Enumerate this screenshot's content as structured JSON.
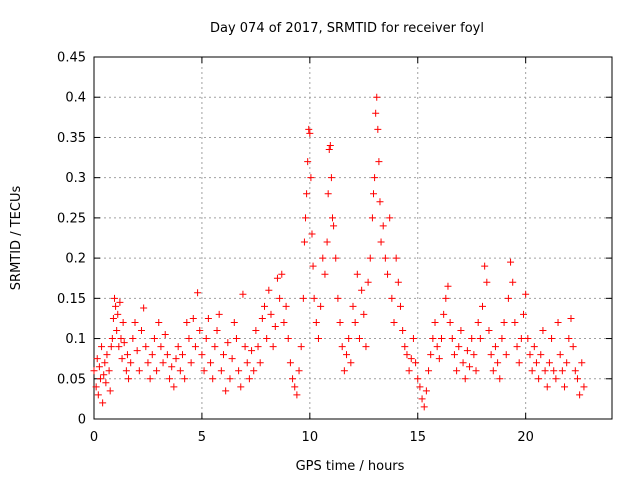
{
  "chart_data": {
    "type": "scatter",
    "title": "Day 074 of 2017, SRMTID for receiver foyl",
    "xlabel": "GPS time / hours",
    "ylabel": "SRMTID / TECUs",
    "xlim": [
      0,
      24
    ],
    "ylim": [
      0,
      0.45
    ],
    "xticks": [
      0,
      5,
      10,
      15,
      20
    ],
    "xtick_labels": [
      "0",
      "5",
      "10",
      "15",
      "20"
    ],
    "yticks": [
      0,
      0.05,
      0.1,
      0.15,
      0.2,
      0.25,
      0.3,
      0.35,
      0.4,
      0.45
    ],
    "ytick_labels": [
      "0",
      "0.05",
      "0.1",
      "0.15",
      "0.2",
      "0.25",
      "0.3",
      "0.35",
      "0.4",
      "0.45"
    ],
    "grid": true,
    "marker": "+",
    "color": "#ff0000",
    "series": [
      {
        "name": "SRMTID",
        "points": [
          [
            0.0,
            0.06
          ],
          [
            0.1,
            0.04
          ],
          [
            0.15,
            0.075
          ],
          [
            0.2,
            0.03
          ],
          [
            0.25,
            0.065
          ],
          [
            0.3,
            0.05
          ],
          [
            0.35,
            0.09
          ],
          [
            0.4,
            0.02
          ],
          [
            0.45,
            0.055
          ],
          [
            0.5,
            0.07
          ],
          [
            0.55,
            0.045
          ],
          [
            0.6,
            0.08
          ],
          [
            0.7,
            0.06
          ],
          [
            0.75,
            0.035
          ],
          [
            0.8,
            0.09
          ],
          [
            0.85,
            0.1
          ],
          [
            0.9,
            0.125
          ],
          [
            0.95,
            0.15
          ],
          [
            1.0,
            0.14
          ],
          [
            1.05,
            0.11
          ],
          [
            1.1,
            0.13
          ],
          [
            1.15,
            0.09
          ],
          [
            1.2,
            0.145
          ],
          [
            1.25,
            0.1
          ],
          [
            1.3,
            0.075
          ],
          [
            1.35,
            0.12
          ],
          [
            1.4,
            0.095
          ],
          [
            1.5,
            0.06
          ],
          [
            1.55,
            0.08
          ],
          [
            1.6,
            0.05
          ],
          [
            1.7,
            0.07
          ],
          [
            1.8,
            0.1
          ],
          [
            1.9,
            0.12
          ],
          [
            2.0,
            0.085
          ],
          [
            2.1,
            0.06
          ],
          [
            2.2,
            0.11
          ],
          [
            2.3,
            0.138
          ],
          [
            2.4,
            0.09
          ],
          [
            2.5,
            0.07
          ],
          [
            2.6,
            0.05
          ],
          [
            2.7,
            0.08
          ],
          [
            2.8,
            0.1
          ],
          [
            2.9,
            0.06
          ],
          [
            3.0,
            0.12
          ],
          [
            3.1,
            0.09
          ],
          [
            3.2,
            0.07
          ],
          [
            3.3,
            0.105
          ],
          [
            3.4,
            0.08
          ],
          [
            3.5,
            0.05
          ],
          [
            3.6,
            0.065
          ],
          [
            3.7,
            0.04
          ],
          [
            3.8,
            0.075
          ],
          [
            3.9,
            0.09
          ],
          [
            4.0,
            0.06
          ],
          [
            4.1,
            0.08
          ],
          [
            4.2,
            0.05
          ],
          [
            4.3,
            0.12
          ],
          [
            4.4,
            0.1
          ],
          [
            4.5,
            0.07
          ],
          [
            4.6,
            0.125
          ],
          [
            4.7,
            0.09
          ],
          [
            4.8,
            0.157
          ],
          [
            4.9,
            0.11
          ],
          [
            5.0,
            0.08
          ],
          [
            5.1,
            0.06
          ],
          [
            5.2,
            0.1
          ],
          [
            5.3,
            0.125
          ],
          [
            5.4,
            0.07
          ],
          [
            5.5,
            0.05
          ],
          [
            5.6,
            0.09
          ],
          [
            5.7,
            0.11
          ],
          [
            5.8,
            0.13
          ],
          [
            5.9,
            0.06
          ],
          [
            6.0,
            0.08
          ],
          [
            6.1,
            0.035
          ],
          [
            6.2,
            0.095
          ],
          [
            6.3,
            0.05
          ],
          [
            6.4,
            0.075
          ],
          [
            6.5,
            0.12
          ],
          [
            6.6,
            0.1
          ],
          [
            6.7,
            0.06
          ],
          [
            6.8,
            0.04
          ],
          [
            6.9,
            0.155
          ],
          [
            7.0,
            0.09
          ],
          [
            7.1,
            0.07
          ],
          [
            7.2,
            0.05
          ],
          [
            7.3,
            0.085
          ],
          [
            7.4,
            0.06
          ],
          [
            7.5,
            0.11
          ],
          [
            7.6,
            0.09
          ],
          [
            7.7,
            0.07
          ],
          [
            7.8,
            0.125
          ],
          [
            7.9,
            0.14
          ],
          [
            8.0,
            0.1
          ],
          [
            8.1,
            0.16
          ],
          [
            8.2,
            0.13
          ],
          [
            8.3,
            0.09
          ],
          [
            8.4,
            0.115
          ],
          [
            8.5,
            0.175
          ],
          [
            8.6,
            0.15
          ],
          [
            8.7,
            0.18
          ],
          [
            8.8,
            0.12
          ],
          [
            8.9,
            0.14
          ],
          [
            9.0,
            0.1
          ],
          [
            9.1,
            0.07
          ],
          [
            9.2,
            0.05
          ],
          [
            9.3,
            0.04
          ],
          [
            9.4,
            0.03
          ],
          [
            9.5,
            0.06
          ],
          [
            9.6,
            0.09
          ],
          [
            9.7,
            0.15
          ],
          [
            9.75,
            0.22
          ],
          [
            9.8,
            0.25
          ],
          [
            9.85,
            0.28
          ],
          [
            9.9,
            0.32
          ],
          [
            9.95,
            0.36
          ],
          [
            10.0,
            0.355
          ],
          [
            10.05,
            0.3
          ],
          [
            10.1,
            0.23
          ],
          [
            10.15,
            0.19
          ],
          [
            10.2,
            0.15
          ],
          [
            10.3,
            0.12
          ],
          [
            10.4,
            0.1
          ],
          [
            10.5,
            0.14
          ],
          [
            10.6,
            0.2
          ],
          [
            10.7,
            0.18
          ],
          [
            10.8,
            0.22
          ],
          [
            10.85,
            0.28
          ],
          [
            10.9,
            0.335
          ],
          [
            10.95,
            0.34
          ],
          [
            11.0,
            0.3
          ],
          [
            11.05,
            0.25
          ],
          [
            11.1,
            0.24
          ],
          [
            11.2,
            0.2
          ],
          [
            11.3,
            0.15
          ],
          [
            11.4,
            0.12
          ],
          [
            11.5,
            0.09
          ],
          [
            11.6,
            0.06
          ],
          [
            11.7,
            0.08
          ],
          [
            11.8,
            0.1
          ],
          [
            11.9,
            0.07
          ],
          [
            12.0,
            0.14
          ],
          [
            12.1,
            0.12
          ],
          [
            12.2,
            0.18
          ],
          [
            12.3,
            0.1
          ],
          [
            12.4,
            0.16
          ],
          [
            12.5,
            0.13
          ],
          [
            12.6,
            0.09
          ],
          [
            12.7,
            0.17
          ],
          [
            12.8,
            0.2
          ],
          [
            12.9,
            0.25
          ],
          [
            12.95,
            0.28
          ],
          [
            13.0,
            0.3
          ],
          [
            13.05,
            0.38
          ],
          [
            13.1,
            0.4
          ],
          [
            13.15,
            0.36
          ],
          [
            13.2,
            0.32
          ],
          [
            13.25,
            0.27
          ],
          [
            13.3,
            0.22
          ],
          [
            13.4,
            0.24
          ],
          [
            13.5,
            0.2
          ],
          [
            13.6,
            0.18
          ],
          [
            13.7,
            0.25
          ],
          [
            13.8,
            0.15
          ],
          [
            13.9,
            0.12
          ],
          [
            14.0,
            0.2
          ],
          [
            14.1,
            0.17
          ],
          [
            14.2,
            0.14
          ],
          [
            14.3,
            0.11
          ],
          [
            14.4,
            0.09
          ],
          [
            14.5,
            0.08
          ],
          [
            14.6,
            0.06
          ],
          [
            14.7,
            0.075
          ],
          [
            14.8,
            0.1
          ],
          [
            14.9,
            0.07
          ],
          [
            15.0,
            0.05
          ],
          [
            15.1,
            0.04
          ],
          [
            15.2,
            0.025
          ],
          [
            15.3,
            0.015
          ],
          [
            15.4,
            0.035
          ],
          [
            15.5,
            0.06
          ],
          [
            15.6,
            0.08
          ],
          [
            15.7,
            0.1
          ],
          [
            15.8,
            0.12
          ],
          [
            15.9,
            0.09
          ],
          [
            16.0,
            0.075
          ],
          [
            16.1,
            0.1
          ],
          [
            16.2,
            0.13
          ],
          [
            16.3,
            0.15
          ],
          [
            16.4,
            0.165
          ],
          [
            16.5,
            0.12
          ],
          [
            16.6,
            0.1
          ],
          [
            16.7,
            0.08
          ],
          [
            16.8,
            0.06
          ],
          [
            16.9,
            0.09
          ],
          [
            17.0,
            0.11
          ],
          [
            17.1,
            0.07
          ],
          [
            17.2,
            0.05
          ],
          [
            17.3,
            0.085
          ],
          [
            17.4,
            0.065
          ],
          [
            17.5,
            0.1
          ],
          [
            17.6,
            0.08
          ],
          [
            17.7,
            0.06
          ],
          [
            17.8,
            0.12
          ],
          [
            17.9,
            0.1
          ],
          [
            18.0,
            0.14
          ],
          [
            18.1,
            0.19
          ],
          [
            18.2,
            0.17
          ],
          [
            18.3,
            0.11
          ],
          [
            18.4,
            0.08
          ],
          [
            18.5,
            0.06
          ],
          [
            18.6,
            0.09
          ],
          [
            18.7,
            0.07
          ],
          [
            18.8,
            0.05
          ],
          [
            18.9,
            0.1
          ],
          [
            19.0,
            0.12
          ],
          [
            19.1,
            0.08
          ],
          [
            19.2,
            0.15
          ],
          [
            19.3,
            0.195
          ],
          [
            19.4,
            0.17
          ],
          [
            19.5,
            0.12
          ],
          [
            19.6,
            0.09
          ],
          [
            19.7,
            0.07
          ],
          [
            19.8,
            0.1
          ],
          [
            19.9,
            0.13
          ],
          [
            20.0,
            0.155
          ],
          [
            20.1,
            0.1
          ],
          [
            20.2,
            0.08
          ],
          [
            20.3,
            0.06
          ],
          [
            20.4,
            0.09
          ],
          [
            20.5,
            0.07
          ],
          [
            20.6,
            0.05
          ],
          [
            20.7,
            0.08
          ],
          [
            20.8,
            0.11
          ],
          [
            20.9,
            0.06
          ],
          [
            21.0,
            0.04
          ],
          [
            21.1,
            0.07
          ],
          [
            21.2,
            0.1
          ],
          [
            21.3,
            0.06
          ],
          [
            21.4,
            0.05
          ],
          [
            21.5,
            0.12
          ],
          [
            21.6,
            0.08
          ],
          [
            21.7,
            0.06
          ],
          [
            21.8,
            0.04
          ],
          [
            21.9,
            0.07
          ],
          [
            22.0,
            0.1
          ],
          [
            22.1,
            0.125
          ],
          [
            22.2,
            0.09
          ],
          [
            22.3,
            0.06
          ],
          [
            22.4,
            0.05
          ],
          [
            22.5,
            0.03
          ],
          [
            22.6,
            0.07
          ],
          [
            22.7,
            0.04
          ]
        ]
      }
    ]
  }
}
